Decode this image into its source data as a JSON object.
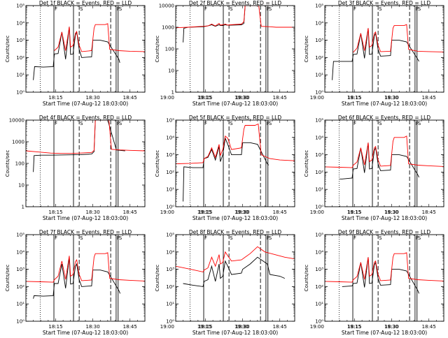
{
  "colors": {
    "events": "#000000",
    "lld": "#ff0000",
    "frame": "#000000"
  },
  "shared": {
    "x_tick_labels": [
      "18:15",
      "18:30",
      "18:45",
      "19:00",
      "19:15",
      "19:30"
    ],
    "xlabel": "Start Time (07-Aug-12 18:03:00)",
    "ylabel": "Counts/sec",
    "log_tick_labels": [
      "10⁰",
      "10¹",
      "10²",
      "10³",
      "10⁴",
      "10⁵"
    ],
    "plain_tick_labels": [
      "1",
      "10",
      "100",
      "1000",
      "10000"
    ],
    "region_letters": [
      "F",
      "S",
      "F",
      "S"
    ]
  },
  "chart_data": [
    {
      "type": "line",
      "title": "Det 1f BLACK = Events, RED = LLD",
      "yscale": "log",
      "ticks": "exp",
      "xlim": [
        0,
        48
      ],
      "ylim": [
        1,
        100000
      ],
      "x_unit": "minutes after 18:03:00",
      "has_black": true,
      "series": [
        {
          "name": "Events",
          "color": "#000000",
          "x": [
            3,
            3.5,
            7,
            11,
            11.5,
            13,
            14.5,
            16,
            17.5,
            18,
            19,
            20,
            20.5,
            21.5,
            22.5,
            26.5,
            27,
            30,
            33,
            37.5,
            37.9
          ],
          "y": [
            5,
            30,
            28,
            30,
            160,
            170,
            3000,
            80,
            6000,
            150,
            160,
            2000,
            3000,
            300,
            100,
            110,
            1000,
            1000,
            800,
            80,
            50
          ]
        },
        {
          "name": "LLD",
          "color": "#ff0000",
          "x": [
            11.5,
            13,
            14.5,
            16,
            17.5,
            18,
            19,
            20,
            20.5,
            21.5,
            22.5,
            26.5,
            27.5,
            28,
            32,
            33,
            33.8,
            37.5,
            42,
            48
          ],
          "y": [
            250,
            400,
            3000,
            250,
            6000,
            400,
            500,
            2500,
            3200,
            500,
            220,
            250,
            5000,
            8000,
            8000,
            9000,
            300,
            250,
            230,
            220
          ]
        }
      ],
      "vlines_dotted": [
        5.8
      ],
      "vlines_dashed": [
        21.5,
        34.2
      ],
      "vlines_solid": [
        11.3,
        19.2,
        36.4,
        37.2
      ]
    },
    {
      "type": "line",
      "title": "Det 2f BLACK = Events, RED = LLD",
      "yscale": "log",
      "ticks": "plain",
      "xlim": [
        0,
        48
      ],
      "ylim": [
        1,
        10000
      ],
      "x_unit": "minutes after 18:03:00",
      "has_black": true,
      "series": [
        {
          "name": "Events",
          "color": "#000000",
          "x": [
            3,
            3.3,
            5,
            11,
            12,
            13,
            14.5,
            16,
            17.5,
            18,
            19,
            20,
            21,
            22,
            26.5,
            27.5,
            28,
            29
          ],
          "y": [
            200,
            900,
            1000,
            1050,
            1100,
            1150,
            1300,
            1100,
            1300,
            1200,
            1200,
            1300,
            1250,
            1250,
            1300,
            1500,
            10000,
            10000
          ]
        },
        {
          "name": "LLD",
          "color": "#ff0000",
          "x": [
            0,
            5,
            11,
            13,
            14.5,
            16,
            17.5,
            18,
            19,
            20,
            21,
            22,
            26.5,
            27.5,
            28,
            33.5,
            34.5,
            38,
            40.5,
            48
          ],
          "y": [
            950,
            1000,
            1100,
            1150,
            1400,
            1150,
            1500,
            1250,
            1300,
            1400,
            1250,
            1300,
            1400,
            1800,
            10000,
            10000,
            1100,
            1050,
            1000,
            1000
          ]
        }
      ],
      "vlines_dotted": [
        5.8
      ],
      "vlines_dashed": [
        21.5,
        34.2
      ],
      "vlines_solid": [
        11.3,
        19.2,
        36.4,
        37.2
      ]
    },
    {
      "type": "line",
      "title": "Det 3f BLACK = Events, RED = LLD",
      "yscale": "log",
      "ticks": "exp",
      "xlim": [
        0,
        48
      ],
      "ylim": [
        1,
        100000
      ],
      "x_unit": "minutes after 18:03:00",
      "has_black": true,
      "series": [
        {
          "name": "Events",
          "color": "#000000",
          "x": [
            3,
            3.5,
            7,
            11,
            11.5,
            13,
            14.5,
            16,
            17.5,
            18,
            19,
            20,
            20.5,
            21.5,
            22.5,
            26.5,
            27,
            30,
            33,
            37.5,
            38
          ],
          "y": [
            5,
            60,
            60,
            60,
            150,
            160,
            2500,
            90,
            5000,
            150,
            160,
            1800,
            2500,
            300,
            120,
            130,
            1000,
            1000,
            800,
            80,
            60
          ]
        },
        {
          "name": "LLD",
          "color": "#ff0000",
          "x": [
            11.5,
            13,
            14.5,
            16,
            17.5,
            18,
            19,
            20,
            20.5,
            21.5,
            22.5,
            26.5,
            27.5,
            28,
            32,
            33,
            33.8,
            37.5,
            42,
            48
          ],
          "y": [
            200,
            350,
            2500,
            250,
            5000,
            400,
            500,
            2500,
            3000,
            500,
            220,
            230,
            5000,
            7000,
            7000,
            8000,
            300,
            230,
            220,
            210
          ]
        }
      ],
      "vlines_dotted": [
        5.8
      ],
      "vlines_dashed": [
        21.5,
        34.2
      ],
      "vlines_solid": [
        11.3,
        19.2,
        36.4,
        37.2
      ]
    },
    {
      "type": "line",
      "title": "Det 4f BLACK = Events, RED = LLD",
      "yscale": "log",
      "ticks": "plain",
      "xlim": [
        0,
        48
      ],
      "ylim": [
        1,
        10000
      ],
      "x_unit": "minutes after 18:03:00",
      "has_black": true,
      "series": [
        {
          "name": "Events",
          "color": "#000000",
          "x": [
            3,
            3.3,
            6,
            10,
            14,
            18,
            22,
            26.5,
            27.5,
            28,
            33,
            36.5,
            38,
            40
          ],
          "y": [
            40,
            230,
            240,
            240,
            245,
            250,
            255,
            270,
            350,
            10000,
            10000,
            420,
            400,
            380
          ]
        },
        {
          "name": "LLD",
          "color": "#ff0000",
          "x": [
            0,
            6,
            10,
            14,
            18,
            22,
            26.5,
            27.5,
            28,
            33.5,
            34.5,
            38,
            42,
            48
          ],
          "y": [
            380,
            330,
            300,
            290,
            290,
            300,
            320,
            400,
            10000,
            10000,
            450,
            420,
            400,
            380
          ]
        }
      ],
      "vlines_dotted": [
        5.8
      ],
      "vlines_dashed": [
        21.5,
        34.2
      ],
      "vlines_solid": [
        11.3,
        19.2,
        36.4,
        37.2
      ]
    },
    {
      "type": "line",
      "title": "Det 5f BLACK = Events, RED = LLD",
      "yscale": "log",
      "ticks": "exp",
      "xlim": [
        0,
        48
      ],
      "ylim": [
        1,
        100000
      ],
      "x_unit": "minutes after 18:03:00",
      "has_black": true,
      "series": [
        {
          "name": "Events",
          "color": "#000000",
          "x": [
            3,
            3.3,
            7,
            11,
            11.5,
            13,
            14.5,
            16,
            17.5,
            18,
            19,
            20,
            21,
            22.5,
            26.5,
            27,
            30,
            33,
            37,
            37.5
          ],
          "y": [
            2,
            200,
            180,
            180,
            600,
            700,
            2000,
            500,
            3000,
            400,
            1000,
            9000,
            4000,
            1000,
            1000,
            5000,
            5000,
            4000,
            300,
            250
          ]
        },
        {
          "name": "LLD",
          "color": "#ff0000",
          "x": [
            0,
            6,
            11,
            11.5,
            13,
            14.5,
            16,
            17.5,
            18,
            19,
            20,
            21,
            22.5,
            26.5,
            27.5,
            28,
            32,
            33.3,
            34.5,
            38,
            42,
            48
          ],
          "y": [
            300,
            320,
            350,
            600,
            800,
            2500,
            700,
            4000,
            900,
            2000,
            12000,
            9000,
            2000,
            2500,
            30000,
            50000,
            50000,
            60000,
            1000,
            600,
            500,
            450
          ]
        }
      ],
      "vlines_dotted": [
        5.8
      ],
      "vlines_dashed": [
        21.5,
        34.2
      ],
      "vlines_solid": [
        11.3,
        19.2,
        36.4,
        37.2
      ]
    },
    {
      "type": "line",
      "title": "Det 6f BLACK = Events, RED = LLD",
      "yscale": "log",
      "ticks": "exp",
      "xlim": [
        0,
        48
      ],
      "ylim": [
        1,
        100000
      ],
      "x_unit": "minutes after 18:03:00",
      "has_black": true,
      "series": [
        {
          "name": "Events",
          "color": "#000000",
          "x": [
            6,
            7,
            11,
            11.5,
            13,
            14.5,
            16,
            17.5,
            18,
            19,
            20,
            20.5,
            21.5,
            22.5,
            26.5,
            27,
            30,
            33,
            37.5,
            38
          ],
          "y": [
            40,
            40,
            45,
            150,
            160,
            2500,
            90,
            5000,
            150,
            160,
            1800,
            2500,
            300,
            120,
            130,
            1000,
            1000,
            800,
            70,
            50
          ]
        },
        {
          "name": "LLD",
          "color": "#ff0000",
          "x": [
            0,
            6,
            11,
            11.5,
            13,
            14.5,
            16,
            17.5,
            18,
            19,
            20,
            20.5,
            21.5,
            22.5,
            26.5,
            27.5,
            28,
            32,
            33,
            33.8,
            37.5,
            42,
            48
          ],
          "y": [
            200,
            190,
            180,
            250,
            380,
            2500,
            260,
            5000,
            400,
            500,
            2500,
            3000,
            500,
            220,
            240,
            6000,
            10000,
            10000,
            12000,
            300,
            250,
            230,
            210
          ]
        }
      ],
      "vlines_dotted": [
        5.8
      ],
      "vlines_dashed": [
        21.5,
        34.2
      ],
      "vlines_solid": [
        11.3,
        19.2,
        36.4,
        37.2
      ]
    },
    {
      "type": "line",
      "title": "Det 7f BLACK = Events, RED = LLD",
      "yscale": "log",
      "ticks": "exp",
      "xlim": [
        0,
        48
      ],
      "ylim": [
        1,
        100000
      ],
      "x_unit": "minutes after 18:03:00",
      "has_black": true,
      "series": [
        {
          "name": "Events",
          "color": "#000000",
          "x": [
            3,
            3.3,
            7,
            11,
            11.5,
            13,
            14.5,
            16,
            17.5,
            18,
            19,
            20,
            20.5,
            21.5,
            22.5,
            26.5,
            27,
            30,
            33,
            37.5,
            38
          ],
          "y": [
            20,
            30,
            28,
            30,
            150,
            150,
            2000,
            80,
            5000,
            140,
            150,
            1500,
            2000,
            250,
            100,
            110,
            900,
            900,
            700,
            60,
            40
          ]
        },
        {
          "name": "LLD",
          "color": "#ff0000",
          "x": [
            0,
            6,
            11,
            11.5,
            13,
            14.5,
            16,
            17.5,
            18,
            19,
            20,
            20.5,
            21.5,
            22.5,
            26.5,
            27.5,
            28,
            32,
            33,
            33.8,
            37.5,
            42,
            48
          ],
          "y": [
            200,
            190,
            180,
            250,
            400,
            3000,
            260,
            6000,
            400,
            500,
            2800,
            3500,
            500,
            220,
            240,
            5000,
            8000,
            8000,
            9000,
            300,
            250,
            230,
            210
          ]
        }
      ],
      "vlines_dotted": [
        5.8
      ],
      "vlines_dashed": [
        21.5,
        34.2
      ],
      "vlines_solid": [
        11.3,
        19.2,
        36.4,
        37.2
      ]
    },
    {
      "type": "line",
      "title": "Det 8f BLACK = Events, RED = LLD",
      "yscale": "log",
      "ticks": "exp",
      "xlim": [
        0,
        48
      ],
      "ylim": [
        1,
        100000
      ],
      "x_unit": "minutes after 18:03:00",
      "has_black": true,
      "series": [
        {
          "name": "Events",
          "color": "#000000",
          "x": [
            3,
            7,
            11,
            11.5,
            13,
            14.5,
            16,
            17.5,
            18,
            19,
            20,
            21,
            22.5,
            26.5,
            27,
            30,
            33,
            37,
            38,
            42,
            44
          ],
          "y": [
            150,
            120,
            100,
            200,
            250,
            1500,
            200,
            2000,
            300,
            400,
            3000,
            1500,
            500,
            600,
            1000,
            2000,
            5000,
            2000,
            500,
            400,
            300
          ]
        },
        {
          "name": "LLD",
          "color": "#ff0000",
          "x": [
            0,
            6,
            11,
            11.5,
            13,
            14.5,
            16,
            17.5,
            18,
            19,
            20,
            21,
            22.5,
            26.5,
            28,
            30,
            33,
            36,
            40,
            44,
            48
          ],
          "y": [
            1500,
            1000,
            700,
            900,
            1200,
            5000,
            1500,
            7000,
            2000,
            2500,
            10000,
            6000,
            3000,
            3500,
            5000,
            8000,
            20000,
            10000,
            7000,
            5000,
            4000
          ]
        }
      ],
      "vlines_dotted": [
        5.8
      ],
      "vlines_dashed": [
        21.5,
        34.2
      ],
      "vlines_solid": [
        11.3,
        19.2,
        36.4,
        37.2
      ]
    },
    {
      "type": "line",
      "title": "Det 9f BLACK = Events, RED = LLD",
      "yscale": "log",
      "ticks": "exp",
      "xlim": [
        0,
        48
      ],
      "ylim": [
        1,
        100000
      ],
      "x_unit": "minutes after 18:03:00",
      "has_black": true,
      "series": [
        {
          "name": "Events",
          "color": "#000000",
          "x": [
            7,
            11,
            11.5,
            13,
            14.5,
            16,
            17.5,
            18,
            19,
            20,
            20.5,
            21.5,
            22.5,
            26.5,
            27,
            30,
            33,
            37.5,
            38
          ],
          "y": [
            100,
            110,
            150,
            160,
            2500,
            90,
            5000,
            150,
            160,
            1800,
            2500,
            300,
            120,
            130,
            1000,
            1000,
            800,
            60,
            40
          ]
        },
        {
          "name": "LLD",
          "color": "#ff0000",
          "x": [
            0,
            6,
            11,
            11.5,
            13,
            14.5,
            16,
            17.5,
            18,
            19,
            20,
            20.5,
            21.5,
            22.5,
            26.5,
            27.5,
            28,
            32,
            33,
            33.8,
            37.5,
            42,
            48
          ],
          "y": [
            200,
            190,
            180,
            250,
            380,
            2500,
            260,
            5000,
            400,
            500,
            2500,
            3000,
            500,
            220,
            240,
            5000,
            8000,
            8000,
            9000,
            300,
            250,
            230,
            210
          ]
        }
      ],
      "vlines_dotted": [
        5.8
      ],
      "vlines_dashed": [
        21.5,
        34.2
      ],
      "vlines_solid": [
        11.3,
        19.2,
        36.4,
        37.2
      ]
    }
  ]
}
